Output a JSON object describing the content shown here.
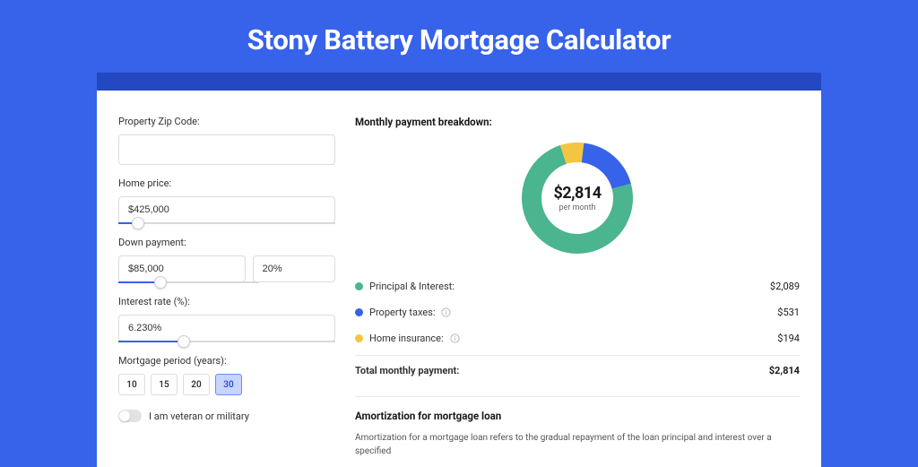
{
  "page": {
    "title": "Stony Battery Mortgage Calculator",
    "background_color": "#3762ea",
    "strip_color": "#2348c2",
    "card_color": "#ffffff"
  },
  "form": {
    "zip": {
      "label": "Property Zip Code:",
      "value": ""
    },
    "home_price": {
      "label": "Home price:",
      "value": "$425,000",
      "slider_percent": 9
    },
    "down_payment": {
      "label": "Down payment:",
      "amount": "$85,000",
      "percent": "20%",
      "slider_percent": 20
    },
    "interest_rate": {
      "label": "Interest rate (%):",
      "value": "6.230%",
      "slider_percent": 30
    },
    "period": {
      "label": "Mortgage period (years):",
      "options": [
        "10",
        "15",
        "20",
        "30"
      ],
      "selected": "30"
    },
    "veteran": {
      "label": "I am veteran or military",
      "checked": false
    }
  },
  "breakdown": {
    "title": "Monthly payment breakdown:",
    "total_display": "$2,814",
    "total_sub": "per month",
    "items": [
      {
        "label": "Principal & Interest:",
        "value": "$2,089",
        "color": "#4ab58e",
        "fraction": 0.742,
        "has_info": false
      },
      {
        "label": "Property taxes:",
        "value": "$531",
        "color": "#3762ea",
        "fraction": 0.189,
        "has_info": true
      },
      {
        "label": "Home insurance:",
        "value": "$194",
        "color": "#f5c542",
        "fraction": 0.069,
        "has_info": true
      }
    ],
    "total_row": {
      "label": "Total monthly payment:",
      "value": "$2,814"
    }
  },
  "amortization": {
    "title": "Amortization for mortgage loan",
    "text": "Amortization for a mortgage loan refers to the gradual repayment of the loan principal and interest over a specified"
  },
  "donut_style": {
    "outer_radius": 62,
    "inner_radius": 40,
    "background": "#ffffff"
  }
}
